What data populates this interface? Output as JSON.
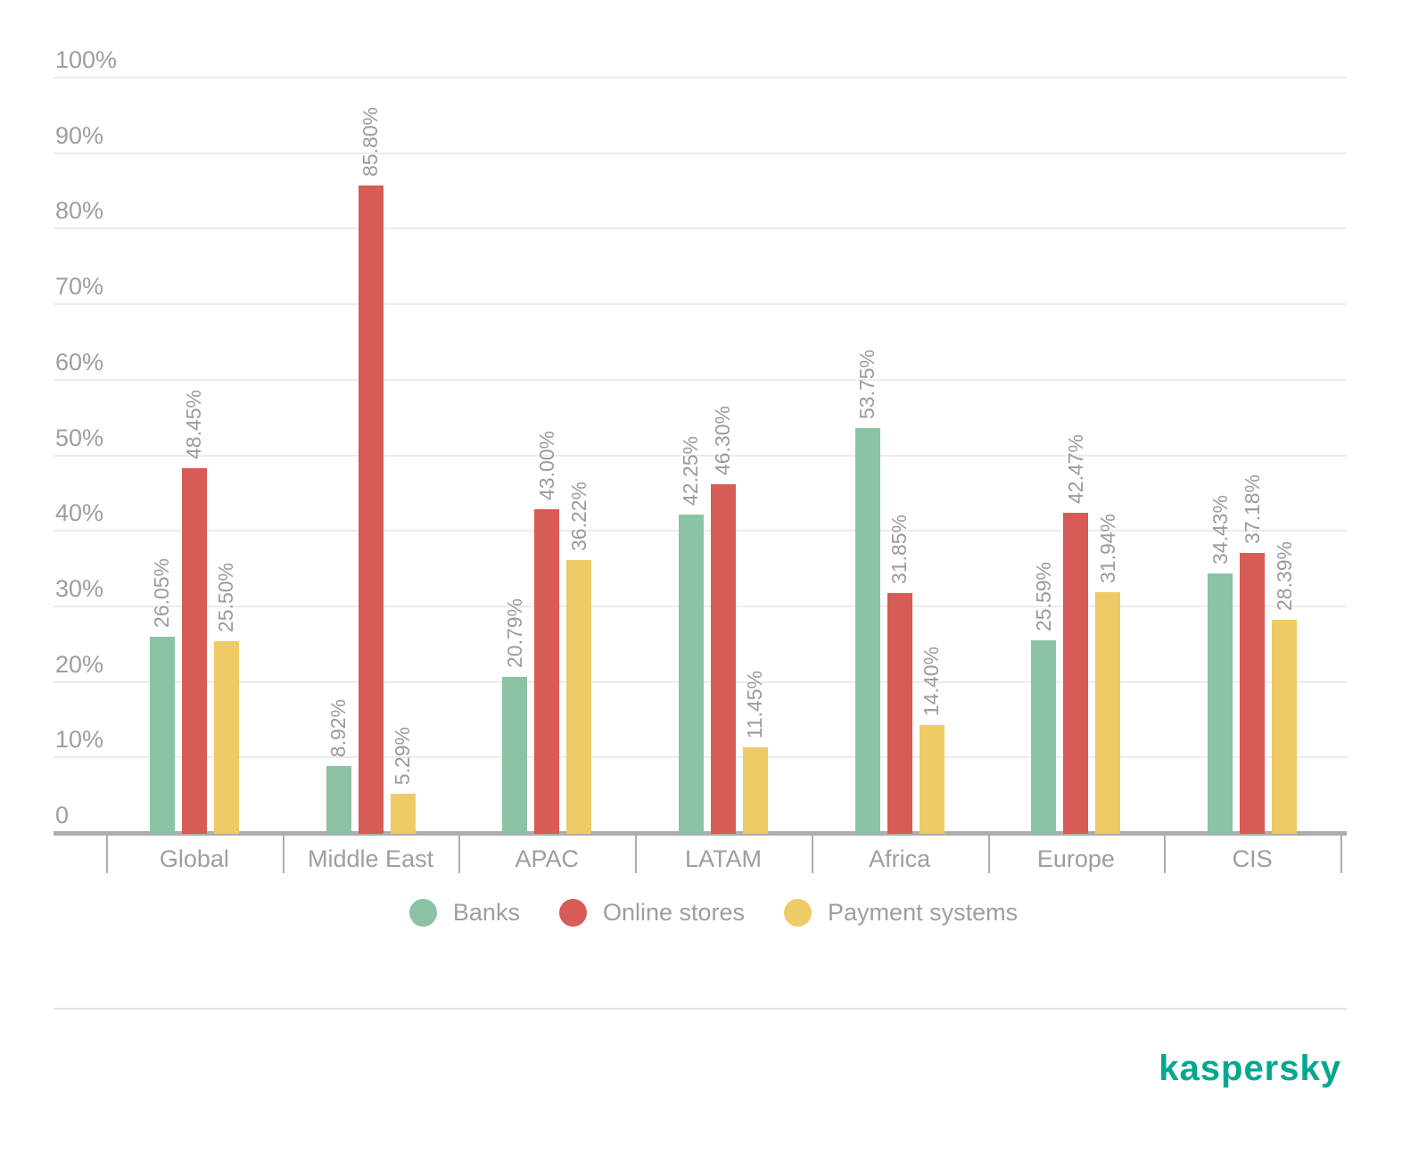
{
  "chart_data": {
    "type": "bar",
    "title": "",
    "categories": [
      "Global",
      "Middle East",
      "APAC",
      "LATAM",
      "Africa",
      "Europe",
      "CIS"
    ],
    "series": [
      {
        "name": "Banks",
        "color": "#8CC3A4",
        "values": [
          26.05,
          8.92,
          20.79,
          42.25,
          53.75,
          25.59,
          34.43
        ],
        "labels": [
          "26.05%",
          "8.92%",
          "20.79%",
          "42.25%",
          "53.75%",
          "25.59%",
          "34.43%"
        ]
      },
      {
        "name": "Online stores",
        "color": "#D75B57",
        "values": [
          48.45,
          85.8,
          43.0,
          46.3,
          31.85,
          42.47,
          37.18
        ],
        "labels": [
          "48.45%",
          "85.80%",
          "43.00%",
          "46.30%",
          "31.85%",
          "42.47%",
          "37.18%"
        ]
      },
      {
        "name": "Payment systems",
        "color": "#EECB66",
        "values": [
          25.5,
          5.29,
          36.22,
          11.45,
          14.4,
          31.94,
          28.39
        ],
        "labels": [
          "25.50%",
          "5.29%",
          "36.22%",
          "11.45%",
          "14.40%",
          "31.94%",
          "28.39%"
        ]
      }
    ],
    "y_ticks": [
      "100%",
      "90%",
      "80%",
      "70%",
      "60%",
      "50%",
      "40%",
      "30%",
      "20%",
      "10%",
      "0"
    ],
    "ylim": [
      0,
      100
    ],
    "grid": true,
    "legend_position": "bottom",
    "value_label_rotation": -90
  },
  "branding": {
    "logo_text": "kaspersky",
    "logo_color": "#00A88E"
  },
  "colors": {
    "axis": "#ADADAD",
    "gridline": "#ECECEC",
    "label_text": "#9E9E9E",
    "value_label_text": "#9B9B9B"
  }
}
